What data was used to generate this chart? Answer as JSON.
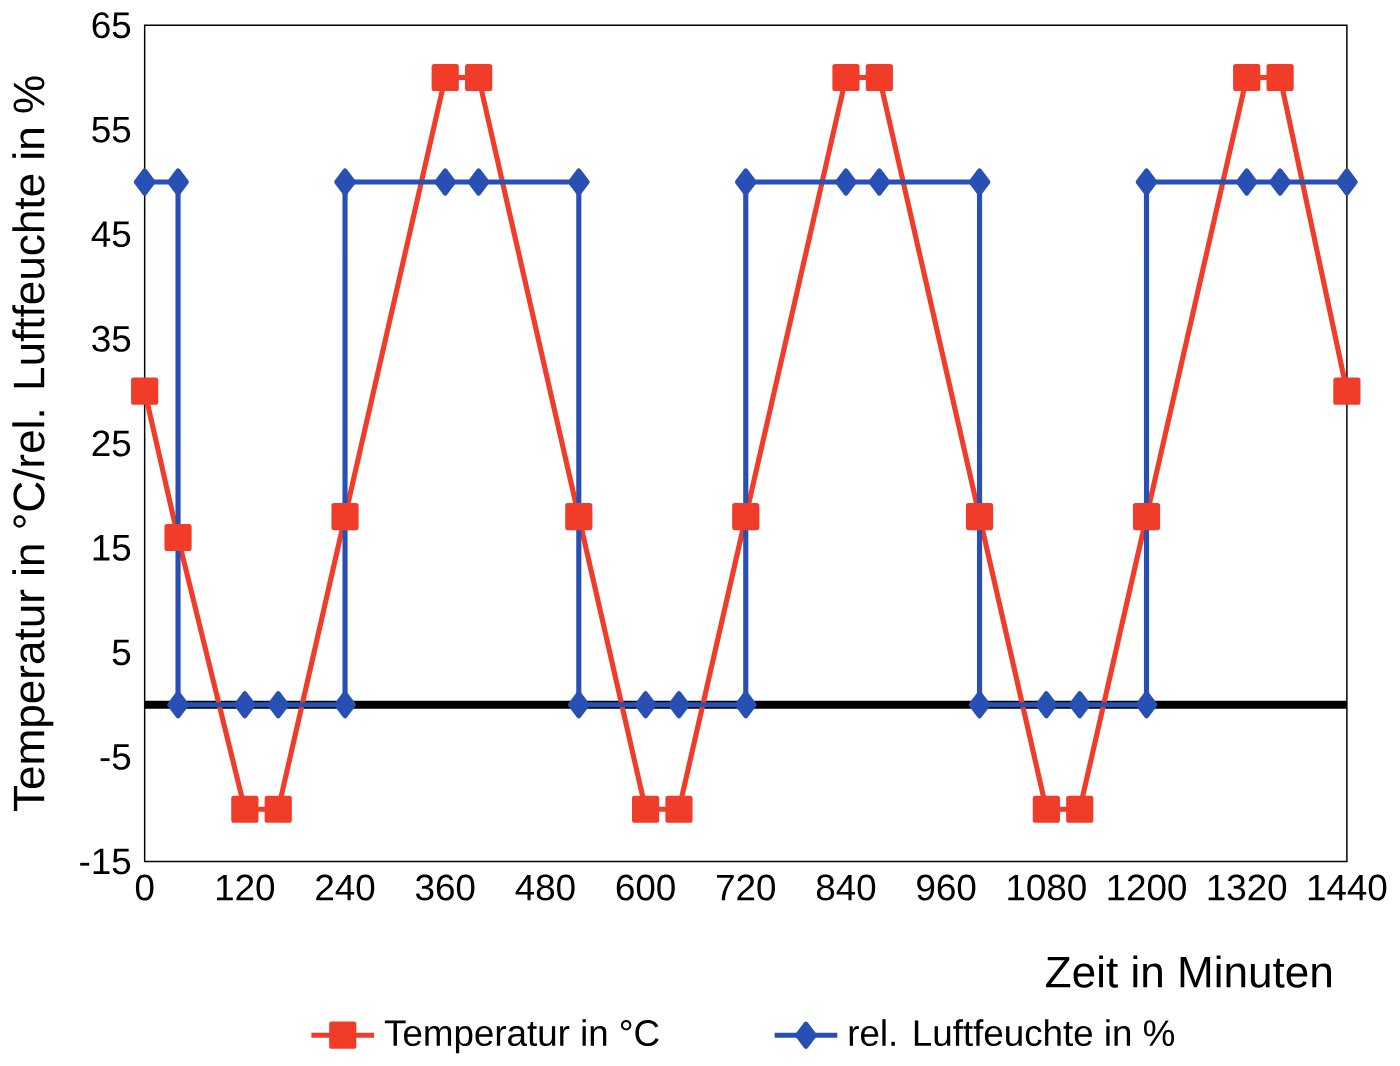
{
  "chart_data": {
    "type": "line",
    "xlabel": "Zeit in Minuten",
    "ylabel": "Temperatur in °C/rel. Luftfeuchte in %",
    "xlim": [
      0,
      1440
    ],
    "xticks": [
      0,
      120,
      240,
      360,
      480,
      600,
      720,
      840,
      960,
      1080,
      1200,
      1320,
      1440
    ],
    "ylim": [
      -15,
      65
    ],
    "yticks": [
      -15,
      -5,
      5,
      15,
      25,
      35,
      45,
      55,
      65
    ],
    "legend": "bottom",
    "line_style": "solid",
    "ref_lines": [
      {
        "axis": "y",
        "value": 0,
        "color": "#000000"
      }
    ],
    "series": [
      {
        "name": "Temperatur in °C",
        "color": "#f03c28",
        "marker": "square",
        "x": [
          0,
          40,
          120,
          160,
          240,
          360,
          400,
          520,
          600,
          640,
          720,
          840,
          880,
          1000,
          1080,
          1120,
          1200,
          1320,
          1360,
          1440
        ],
        "values": [
          30,
          16,
          -10,
          -10,
          18,
          60,
          60,
          18,
          -10,
          -10,
          18,
          60,
          60,
          18,
          -10,
          -10,
          18,
          60,
          60,
          30
        ]
      },
      {
        "name": "rel. Luftfeuchte in %",
        "color": "#2850b4",
        "marker": "diamond",
        "x": [
          0,
          40,
          40,
          120,
          160,
          240,
          240,
          360,
          400,
          520,
          520,
          600,
          640,
          720,
          720,
          840,
          880,
          1000,
          1000,
          1080,
          1120,
          1200,
          1200,
          1320,
          1360,
          1440
        ],
        "values": [
          50,
          50,
          0,
          0,
          0,
          0,
          50,
          50,
          50,
          50,
          0,
          0,
          0,
          0,
          50,
          50,
          50,
          50,
          0,
          0,
          0,
          0,
          50,
          50,
          50,
          50
        ]
      }
    ]
  }
}
